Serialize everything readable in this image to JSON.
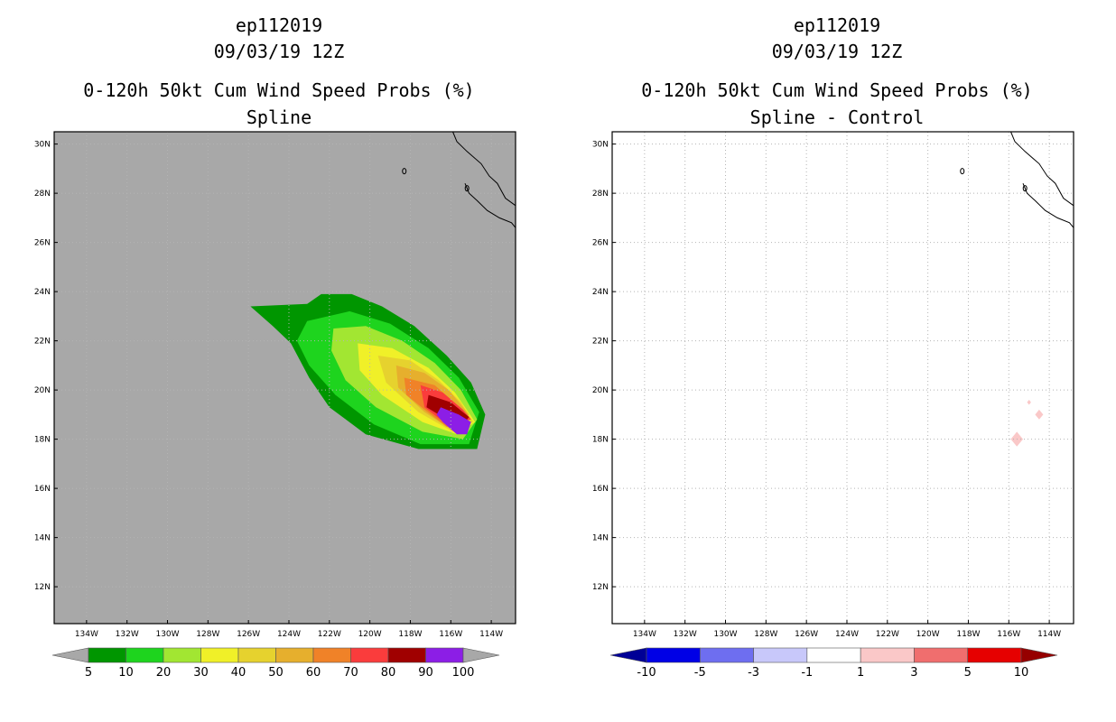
{
  "chart_data": [
    {
      "type": "heatmap",
      "title": [
        "ep112019",
        "09/03/19 12Z",
        "0-120h 50kt Cum Wind Speed Probs (%)",
        "Spline"
      ],
      "xlabel": "",
      "ylabel": "",
      "xlim": [
        -135.6,
        -112.8
      ],
      "ylim": [
        10.5,
        30.5
      ],
      "grid": true,
      "x_ticks": [
        "134W",
        "132W",
        "130W",
        "128W",
        "126W",
        "124W",
        "122W",
        "120W",
        "118W",
        "116W",
        "114W"
      ],
      "y_ticks": [
        "12N",
        "14N",
        "16N",
        "18N",
        "20N",
        "22N",
        "24N",
        "26N",
        "28N",
        "30N"
      ],
      "background_color": "#a8a8a8",
      "colorbar": {
        "labels": [
          "5",
          "10",
          "20",
          "30",
          "40",
          "50",
          "60",
          "70",
          "80",
          "90",
          "100"
        ],
        "colors": [
          "#009600",
          "#1ed41e",
          "#a2e632",
          "#f0f028",
          "#e6d22e",
          "#e6af2d",
          "#f08228",
          "#fa3c3c",
          "#a00000",
          "#8c1ee6"
        ],
        "under_color": "#a8a8a8",
        "over_color": "#a8a8a8"
      },
      "contours": [
        {
          "level": 5,
          "color": "#009600",
          "polygon": [
            [
              -123.1,
              23.5
            ],
            [
              -122.4,
              23.9
            ],
            [
              -120.9,
              23.9
            ],
            [
              -119.4,
              23.4
            ],
            [
              -117.8,
              22.6
            ],
            [
              -116.2,
              21.4
            ],
            [
              -115.0,
              20.3
            ],
            [
              -114.3,
              19.0
            ],
            [
              -114.7,
              17.6
            ],
            [
              -117.6,
              17.6
            ],
            [
              -120.2,
              18.2
            ],
            [
              -122.0,
              19.3
            ],
            [
              -123.0,
              20.5
            ],
            [
              -123.9,
              21.9
            ],
            [
              -124.8,
              22.6
            ],
            [
              -125.9,
              23.4
            ]
          ]
        },
        {
          "level": 10,
          "color": "#1ed41e",
          "polygon": [
            [
              -123.1,
              22.8
            ],
            [
              -121.0,
              23.2
            ],
            [
              -119.0,
              22.7
            ],
            [
              -117.1,
              21.7
            ],
            [
              -115.6,
              20.5
            ],
            [
              -114.6,
              19.1
            ],
            [
              -115.1,
              17.8
            ],
            [
              -117.5,
              17.8
            ],
            [
              -119.8,
              18.6
            ],
            [
              -121.7,
              19.8
            ],
            [
              -123.0,
              21.0
            ],
            [
              -123.6,
              22.0
            ]
          ]
        },
        {
          "level": 20,
          "color": "#a2e632",
          "polygon": [
            [
              -121.8,
              22.5
            ],
            [
              -120.2,
              22.6
            ],
            [
              -118.4,
              22.0
            ],
            [
              -116.8,
              21.1
            ],
            [
              -115.5,
              20.0
            ],
            [
              -114.7,
              18.8
            ],
            [
              -115.4,
              18.0
            ],
            [
              -117.4,
              18.3
            ],
            [
              -119.7,
              19.3
            ],
            [
              -121.2,
              20.4
            ],
            [
              -121.9,
              21.6
            ]
          ]
        },
        {
          "level": 30,
          "color": "#f0f028",
          "polygon": [
            [
              -120.6,
              21.9
            ],
            [
              -118.9,
              21.7
            ],
            [
              -117.1,
              20.9
            ],
            [
              -115.8,
              19.9
            ],
            [
              -114.8,
              18.7
            ],
            [
              -115.7,
              18.2
            ],
            [
              -117.4,
              18.7
            ],
            [
              -119.4,
              19.8
            ],
            [
              -120.5,
              20.8
            ]
          ]
        },
        {
          "level": 40,
          "color": "#e6d22e",
          "polygon": [
            [
              -119.6,
              21.4
            ],
            [
              -118.0,
              21.2
            ],
            [
              -116.6,
              20.4
            ],
            [
              -115.5,
              19.5
            ],
            [
              -114.9,
              18.7
            ],
            [
              -115.9,
              18.3
            ],
            [
              -117.6,
              19.1
            ],
            [
              -119.2,
              20.3
            ]
          ]
        },
        {
          "level": 50,
          "color": "#e6af2d",
          "polygon": [
            [
              -118.7,
              21.0
            ],
            [
              -117.3,
              20.7
            ],
            [
              -116.1,
              20.0
            ],
            [
              -115.1,
              19.0
            ],
            [
              -116.0,
              18.4
            ],
            [
              -117.3,
              19.1
            ],
            [
              -118.6,
              20.1
            ]
          ]
        },
        {
          "level": 60,
          "color": "#f08228",
          "polygon": [
            [
              -118.3,
              20.5
            ],
            [
              -116.8,
              20.2
            ],
            [
              -115.7,
              19.4
            ],
            [
              -115.0,
              18.8
            ],
            [
              -116.2,
              18.5
            ],
            [
              -117.3,
              19.2
            ],
            [
              -118.2,
              19.8
            ]
          ]
        },
        {
          "level": 70,
          "color": "#fa3c3c",
          "polygon": [
            [
              -117.5,
              20.2
            ],
            [
              -116.4,
              19.9
            ],
            [
              -115.4,
              19.2
            ],
            [
              -115.0,
              18.8
            ],
            [
              -116.2,
              18.6
            ],
            [
              -117.3,
              19.3
            ]
          ]
        },
        {
          "level": 80,
          "color": "#a00000",
          "polygon": [
            [
              -117.1,
              19.8
            ],
            [
              -116.0,
              19.5
            ],
            [
              -115.1,
              18.9
            ],
            [
              -115.6,
              18.4
            ],
            [
              -116.6,
              19.0
            ],
            [
              -117.2,
              19.3
            ]
          ]
        },
        {
          "level": 90,
          "color": "#8c1ee6",
          "polygon": [
            [
              -116.5,
              19.3
            ],
            [
              -115.6,
              19.0
            ],
            [
              -115.0,
              18.7
            ],
            [
              -115.2,
              18.2
            ],
            [
              -115.7,
              18.2
            ],
            [
              -116.4,
              18.7
            ],
            [
              -116.7,
              19.0
            ]
          ]
        }
      ]
    },
    {
      "type": "heatmap",
      "title": [
        "ep112019",
        "09/03/19 12Z",
        "0-120h 50kt Cum Wind Speed Probs (%)",
        "Spline - Control"
      ],
      "xlabel": "",
      "ylabel": "",
      "xlim": [
        -135.6,
        -112.8
      ],
      "ylim": [
        10.5,
        30.5
      ],
      "grid": true,
      "x_ticks": [
        "134W",
        "132W",
        "130W",
        "128W",
        "126W",
        "124W",
        "122W",
        "120W",
        "118W",
        "116W",
        "114W"
      ],
      "y_ticks": [
        "12N",
        "14N",
        "16N",
        "18N",
        "20N",
        "22N",
        "24N",
        "26N",
        "28N",
        "30N"
      ],
      "background_color": "#ffffff",
      "colorbar": {
        "labels": [
          "-10",
          "-5",
          "-3",
          "-1",
          "1",
          "3",
          "5",
          "10"
        ],
        "colors": [
          "#0000e6",
          "#6e6ef0",
          "#c8c8fa",
          "#ffffff",
          "#fac8c8",
          "#f06e6e",
          "#e60000"
        ],
        "under_color": "#000096",
        "over_color": "#960000"
      },
      "contours": [
        {
          "level": 1,
          "color": "#fac8c8",
          "polygon": [
            [
              -115.6,
              18.3
            ],
            [
              -115.3,
              18.0
            ],
            [
              -115.6,
              17.7
            ],
            [
              -115.9,
              18.0
            ]
          ]
        },
        {
          "level": 1,
          "color": "#fac8c8",
          "polygon": [
            [
              -114.5,
              19.2
            ],
            [
              -114.3,
              19.0
            ],
            [
              -114.5,
              18.8
            ],
            [
              -114.7,
              19.0
            ]
          ]
        },
        {
          "level": 1,
          "color": "#fac8c8",
          "polygon": [
            [
              -115.0,
              19.6
            ],
            [
              -114.9,
              19.5
            ],
            [
              -115.0,
              19.4
            ],
            [
              -115.1,
              19.5
            ]
          ]
        }
      ]
    }
  ]
}
